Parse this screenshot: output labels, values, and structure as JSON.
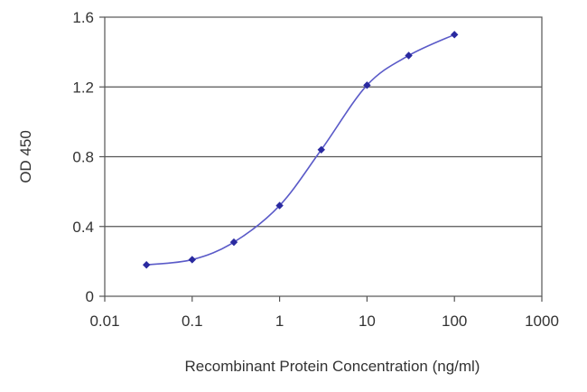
{
  "chart_data": {
    "type": "line",
    "x_scale": "log",
    "xlabel": "Recombinant Protein Concentration (ng/ml)",
    "ylabel": "OD 450",
    "xlim": [
      0.01,
      1000
    ],
    "ylim": [
      0,
      1.6
    ],
    "x_ticks": [
      0.01,
      0.1,
      1,
      10,
      100,
      1000
    ],
    "x_tick_labels": [
      "0.01",
      "0.1",
      "1",
      "10",
      "100",
      "1000"
    ],
    "y_ticks": [
      0,
      0.4,
      0.8,
      1.2,
      1.6
    ],
    "y_tick_labels": [
      "0",
      "0.4",
      "0.8",
      "1.2",
      "1.6"
    ],
    "grid": "horizontal",
    "legend": "none",
    "series": [
      {
        "color": "#2a2aa0",
        "x": [
          0.03,
          0.1,
          0.3,
          1,
          3,
          10,
          30,
          100
        ],
        "y": [
          0.18,
          0.21,
          0.31,
          0.52,
          0.84,
          1.21,
          1.38,
          1.5
        ]
      }
    ]
  }
}
